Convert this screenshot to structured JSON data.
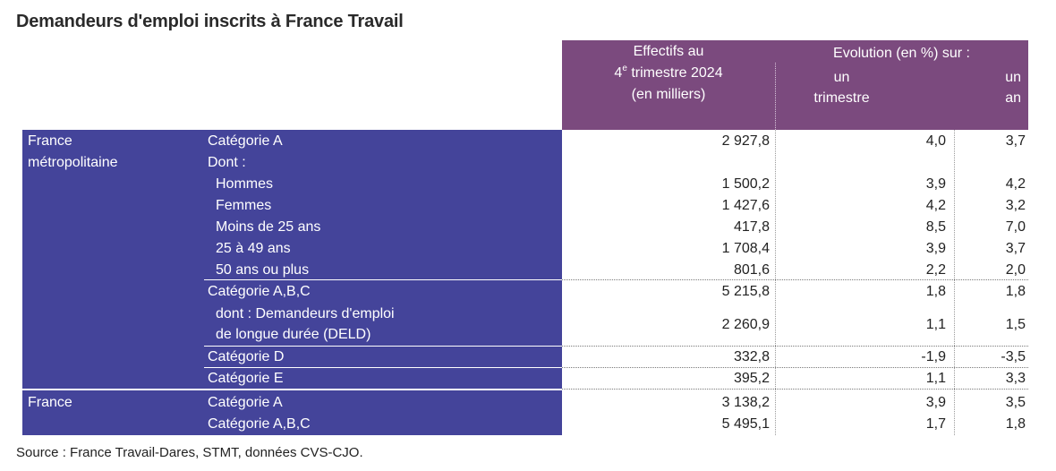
{
  "title": "Demandeurs d'emploi inscrits à France Travail",
  "header": {
    "effectifs_line1": "Effectifs au",
    "effectifs_line2_num": "4",
    "effectifs_line2_sup": "e",
    "effectifs_line2_rest": " trimestre 2024",
    "effectifs_line3": "(en milliers)",
    "evolution": "Evolution (en %) sur :",
    "trimestre_line1": "un",
    "trimestre_line2": "trimestre",
    "an_line1": "un",
    "an_line2": "an"
  },
  "regions": [
    {
      "line1": "France",
      "line2": "métropolitaine"
    },
    {
      "line1": "France",
      "line2": ""
    }
  ],
  "rows": [
    {
      "label": "Catégorie A",
      "effectifs": "2 927,8",
      "trimestre": "4,0",
      "an": "3,7"
    },
    {
      "label": "Dont :",
      "effectifs": "",
      "trimestre": "",
      "an": ""
    },
    {
      "label": "Hommes",
      "effectifs": "1 500,2",
      "trimestre": "3,9",
      "an": "4,2"
    },
    {
      "label": "Femmes",
      "effectifs": "1 427,6",
      "trimestre": "4,2",
      "an": "3,2"
    },
    {
      "label": "Moins de 25 ans",
      "effectifs": "417,8",
      "trimestre": "8,5",
      "an": "7,0"
    },
    {
      "label": "25 à 49 ans",
      "effectifs": "1 708,4",
      "trimestre": "3,9",
      "an": "3,7"
    },
    {
      "label": "50 ans ou plus",
      "effectifs": "801,6",
      "trimestre": "2,2",
      "an": "2,0"
    },
    {
      "label": "Catégorie A,B,C",
      "effectifs": "5 215,8",
      "trimestre": "1,8",
      "an": "1,8"
    },
    {
      "label": "dont : Demandeurs d'emploi",
      "label2": "de longue durée (DELD)",
      "effectifs": "2 260,9",
      "trimestre": "1,1",
      "an": "1,5"
    },
    {
      "label": "Catégorie D",
      "effectifs": "332,8",
      "trimestre": "-1,9",
      "an": "-3,5"
    },
    {
      "label": "Catégorie E",
      "effectifs": "395,2",
      "trimestre": "1,1",
      "an": "3,3"
    },
    {
      "label": "Catégorie A",
      "effectifs": "3 138,2",
      "trimestre": "3,9",
      "an": "3,5"
    },
    {
      "label": "Catégorie A,B,C",
      "effectifs": "5 495,1",
      "trimestre": "1,7",
      "an": "1,8"
    }
  ],
  "source": "Source : France Travail-Dares, STMT, données CVS-CJO.",
  "colors": {
    "header_bg": "#7b4a7e",
    "label_bg": "#44449a"
  }
}
